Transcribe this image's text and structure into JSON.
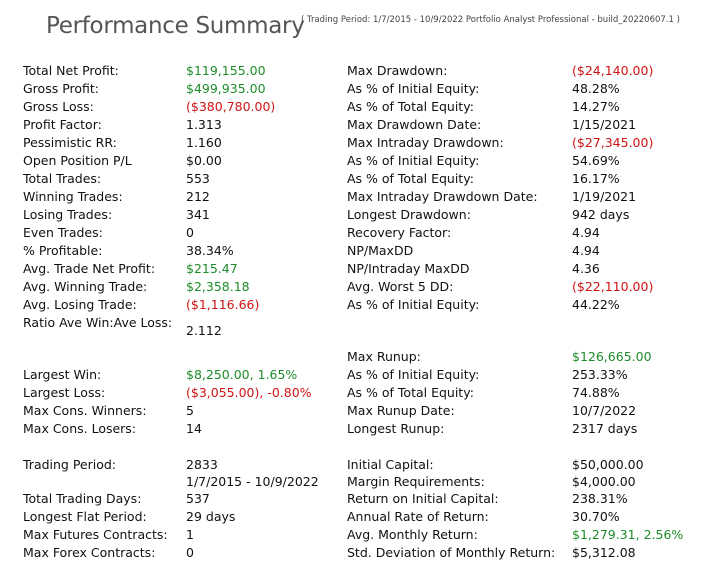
{
  "header": {
    "title": "Performance Summary",
    "subtitle": "( Trading Period: 1/7/2015 - 10/9/2022    Portfolio Analyst Professional - build_20220607.1 )"
  },
  "left": [
    {
      "label": "Total Net Profit:",
      "value": "$119,155.00",
      "color": "green"
    },
    {
      "label": "Gross Profit:",
      "value": "$499,935.00",
      "color": "green"
    },
    {
      "label": "Gross Loss:",
      "value": "($380,780.00)",
      "color": "red"
    },
    {
      "label": "Profit Factor:",
      "value": "1.313",
      "color": ""
    },
    {
      "label": "Pessimistic RR:",
      "value": "1.160",
      "color": ""
    },
    {
      "label": "Open Position P/L",
      "value": "$0.00",
      "color": ""
    },
    {
      "label": "Total Trades:",
      "value": "553",
      "color": ""
    },
    {
      "label": "Winning Trades:",
      "value": "212",
      "color": ""
    },
    {
      "label": "Losing Trades:",
      "value": "341",
      "color": ""
    },
    {
      "label": "Even Trades:",
      "value": "0",
      "color": ""
    },
    {
      "label": "% Profitable:",
      "value": "38.34%",
      "color": ""
    },
    {
      "label": "Avg. Trade Net Profit:",
      "value": "$215.47",
      "color": "green"
    },
    {
      "label": "Avg. Winning Trade:",
      "value": "$2,358.18",
      "color": "green"
    },
    {
      "label": "Avg. Losing Trade:",
      "value": "($1,116.66)",
      "color": "red"
    },
    {
      "label": "Ratio Ave Win:Ave Loss:",
      "value": "2.112",
      "color": ""
    },
    {
      "label": "Largest Win:",
      "value": "$8,250.00, 1.65%",
      "color": "green"
    },
    {
      "label": "Largest Loss:",
      "value": "($3,055.00), -0.80%",
      "color": "red"
    },
    {
      "label": "Max Cons. Winners:",
      "value": "5",
      "color": ""
    },
    {
      "label": "Max Cons. Losers:",
      "value": "14",
      "color": ""
    },
    {
      "label": "Trading Period:",
      "value": "2833",
      "color": ""
    },
    {
      "label": "",
      "value": "1/7/2015 - 10/9/2022",
      "color": ""
    },
    {
      "label": "Total Trading Days:",
      "value": "537",
      "color": ""
    },
    {
      "label": "Longest Flat Period:",
      "value": "29 days",
      "color": ""
    },
    {
      "label": "Max Futures Contracts:",
      "value": "1",
      "color": ""
    },
    {
      "label": "Max Forex Contracts:",
      "value": "0",
      "color": ""
    }
  ],
  "right": [
    {
      "label": "Max Drawdown:",
      "value": "($24,140.00)",
      "color": "red"
    },
    {
      "label": "As % of Initial Equity:",
      "value": "48.28%",
      "color": ""
    },
    {
      "label": "As % of Total Equity:",
      "value": "14.27%",
      "color": ""
    },
    {
      "label": "Max Drawdown Date:",
      "value": "1/15/2021",
      "color": ""
    },
    {
      "label": "Max Intraday Drawdown:",
      "value": "($27,345.00)",
      "color": "red"
    },
    {
      "label": "As % of Initial Equity:",
      "value": "54.69%",
      "color": ""
    },
    {
      "label": "As % of Total Equity:",
      "value": "16.17%",
      "color": ""
    },
    {
      "label": "Max Intraday Drawdown Date:",
      "value": "1/19/2021",
      "color": ""
    },
    {
      "label": "Longest Drawdown:",
      "value": "942 days",
      "color": ""
    },
    {
      "label": "Recovery Factor:",
      "value": "4.94",
      "color": ""
    },
    {
      "label": "NP/MaxDD",
      "value": "4.94",
      "color": ""
    },
    {
      "label": "NP/Intraday MaxDD",
      "value": "4.36",
      "color": ""
    },
    {
      "label": "Avg. Worst 5 DD:",
      "value": "($22,110.00)",
      "color": "red"
    },
    {
      "label": "As % of Initial Equity:",
      "value": "44.22%",
      "color": ""
    },
    {
      "label": "Max Runup:",
      "value": "$126,665.00",
      "color": "green"
    },
    {
      "label": "As % of Initial Equity:",
      "value": "253.33%",
      "color": ""
    },
    {
      "label": "As % of Total Equity:",
      "value": "74.88%",
      "color": ""
    },
    {
      "label": "Max Runup Date:",
      "value": "10/7/2022",
      "color": ""
    },
    {
      "label": "Longest Runup:",
      "value": "2317 days",
      "color": ""
    },
    {
      "label": "Initial Capital:",
      "value": "$50,000.00",
      "color": ""
    },
    {
      "label": "Margin Requirements:",
      "value": "$4,000.00",
      "color": ""
    },
    {
      "label": "Return on Initial Capital:",
      "value": "238.31%",
      "color": ""
    },
    {
      "label": "Annual Rate of Return:",
      "value": "30.70%",
      "color": ""
    },
    {
      "label": "Avg. Monthly Return:",
      "value": "$1,279.31, 2.56%",
      "color": "green"
    },
    {
      "label": "Std. Deviation of Monthly Return:",
      "value": "$5,312.08",
      "color": ""
    }
  ]
}
